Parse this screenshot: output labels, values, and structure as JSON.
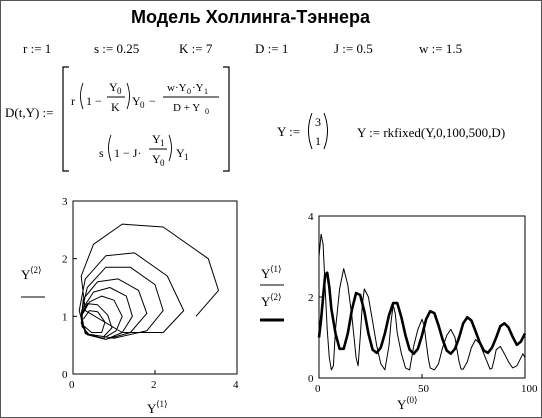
{
  "title": "Модель Холлинга-Тэннера",
  "params": [
    {
      "text": "r := 1"
    },
    {
      "text": "s := 0.25"
    },
    {
      "text": "K := 7"
    },
    {
      "text": "D := 1"
    },
    {
      "text": "J := 0.5"
    },
    {
      "text": "w := 1.5"
    }
  ],
  "equation": {
    "lhs": "D(t,Y) :=",
    "row1_r": "r",
    "row1_one": "1 −",
    "row1_Y0num": "Y",
    "row1_Y0num_sub": "0",
    "row1_K": "K",
    "row1_Y0": "Y",
    "row1_Y0_sub": "0",
    "row1_minus": "−",
    "row1_num": "w·Y",
    "row1_num_sub0": "0",
    "row1_num_mid": "·Y",
    "row1_num_sub1": "1",
    "row1_den": "D + Y",
    "row1_den_sub": "0",
    "row2_s": "s",
    "row2_one": "1 − J·",
    "row2_num": "Y",
    "row2_num_sub": "1",
    "row2_den": "Y",
    "row2_den_sub": "0",
    "row2_Y1": "Y",
    "row2_Y1_sub": "1"
  },
  "initial": {
    "lhs": "Y :=",
    "v0": "3",
    "v1": "1"
  },
  "solver": {
    "text": "Y := rkfixed(Y,0,100,500,D)"
  },
  "chart_data": [
    {
      "type": "line",
      "xlim": [
        0,
        4
      ],
      "ylim": [
        0,
        3
      ],
      "xticks": [
        "0",
        "2",
        "4"
      ],
      "yticks": [
        "0",
        "1",
        "2",
        "3"
      ],
      "xlabel": "Y",
      "xlabel_sup": "⟨1⟩",
      "ylabel": "Y",
      "ylabel_sup": "⟨2⟩",
      "series": [
        {
          "x": [
            3.0,
            3.55,
            3.3,
            2.2,
            1.2,
            0.5,
            0.2,
            0.3,
            1.2,
            2.2,
            2.7,
            2.3,
            1.5,
            0.8,
            0.3,
            0.15,
            0.3,
            1.0,
            1.8,
            2.2,
            2.0,
            1.4,
            0.8,
            0.35,
            0.2,
            0.3,
            0.8,
            1.4,
            1.8,
            1.6,
            1.1,
            0.6,
            0.25,
            0.2,
            0.35,
            0.8,
            1.2,
            1.45,
            1.3,
            0.9,
            0.5,
            0.25,
            0.2,
            0.35,
            0.75,
            1.05,
            1.2,
            1.0,
            0.7,
            0.4,
            0.22,
            0.22,
            0.4,
            0.75,
            0.95,
            0.85,
            0.6,
            0.35,
            0.22,
            0.24,
            0.45,
            0.7,
            0.78,
            0.6,
            0.4,
            0.25
          ],
          "y": [
            1.0,
            1.45,
            2.0,
            2.55,
            2.6,
            2.25,
            1.7,
            1.1,
            0.72,
            0.72,
            1.1,
            1.7,
            2.1,
            2.05,
            1.65,
            1.1,
            0.7,
            0.62,
            0.75,
            1.1,
            1.55,
            1.85,
            1.85,
            1.5,
            1.05,
            0.7,
            0.6,
            0.72,
            1.05,
            1.45,
            1.65,
            1.6,
            1.3,
            0.95,
            0.68,
            0.6,
            0.72,
            1.0,
            1.35,
            1.5,
            1.42,
            1.15,
            0.88,
            0.68,
            0.62,
            0.75,
            1.0,
            1.28,
            1.35,
            1.25,
            1.02,
            0.82,
            0.68,
            0.65,
            0.8,
            1.02,
            1.2,
            1.22,
            1.05,
            0.85,
            0.72,
            0.72,
            0.9,
            1.08,
            1.1,
            0.95
          ]
        }
      ]
    },
    {
      "type": "line",
      "xlim": [
        0,
        100
      ],
      "ylim": [
        0,
        4
      ],
      "xticks": [
        "0",
        "50",
        "100"
      ],
      "yticks": [
        "0",
        "2",
        "4"
      ],
      "xlabel": "Y",
      "xlabel_sup": "⟨0⟩",
      "legend": [
        {
          "label": "Y",
          "label_sup": "⟨1⟩",
          "style": "thin"
        },
        {
          "label": "Y",
          "label_sup": "⟨2⟩",
          "style": "thick"
        }
      ],
      "series": [
        {
          "x": [
            0,
            1,
            2,
            3,
            4,
            5,
            6,
            7,
            8,
            10,
            12,
            14,
            16,
            18,
            19,
            20,
            21,
            22,
            24,
            26,
            28,
            30,
            32,
            34,
            35,
            36,
            37,
            38,
            40,
            42,
            44,
            46,
            48,
            50,
            51,
            52,
            53,
            54,
            56,
            58,
            60,
            62,
            64,
            66,
            67,
            68,
            69,
            70,
            72,
            74,
            76,
            78,
            80,
            82,
            83,
            84,
            85,
            86,
            88,
            90,
            92,
            94,
            96,
            98,
            99,
            100
          ],
          "y": [
            3.0,
            3.55,
            3.3,
            2.2,
            1.2,
            0.5,
            0.2,
            0.3,
            1.2,
            2.2,
            2.7,
            2.3,
            1.5,
            0.5,
            0.3,
            1.0,
            1.8,
            2.2,
            2.0,
            1.4,
            0.8,
            0.35,
            0.2,
            0.8,
            1.4,
            1.8,
            1.6,
            1.1,
            0.6,
            0.25,
            0.2,
            0.8,
            1.2,
            1.45,
            1.3,
            0.9,
            0.5,
            0.25,
            0.2,
            0.35,
            0.75,
            1.05,
            1.2,
            1.0,
            0.7,
            0.4,
            0.22,
            0.22,
            0.4,
            0.75,
            0.95,
            0.85,
            0.6,
            0.35,
            0.22,
            0.24,
            0.45,
            0.7,
            0.78,
            0.6,
            0.4,
            0.25,
            0.3,
            0.5,
            0.6,
            0.5
          ]
        },
        {
          "x": [
            0,
            1,
            2,
            3,
            4,
            5,
            6,
            8,
            10,
            12,
            14,
            16,
            18,
            20,
            22,
            24,
            26,
            28,
            30,
            32,
            34,
            36,
            38,
            40,
            42,
            44,
            46,
            48,
            50,
            52,
            54,
            56,
            58,
            60,
            62,
            64,
            66,
            68,
            70,
            72,
            74,
            76,
            78,
            80,
            82,
            84,
            86,
            88,
            90,
            92,
            94,
            96,
            98,
            100
          ],
          "y": [
            1.0,
            1.45,
            2.0,
            2.55,
            2.6,
            2.25,
            1.7,
            1.1,
            0.72,
            0.72,
            1.1,
            1.7,
            2.1,
            2.05,
            1.65,
            1.1,
            0.7,
            0.62,
            0.75,
            1.1,
            1.55,
            1.85,
            1.85,
            1.5,
            1.05,
            0.7,
            0.6,
            0.72,
            1.05,
            1.45,
            1.65,
            1.6,
            1.3,
            0.95,
            0.68,
            0.6,
            0.72,
            1.0,
            1.35,
            1.5,
            1.42,
            1.15,
            0.88,
            0.68,
            0.62,
            0.75,
            1.0,
            1.28,
            1.35,
            1.25,
            1.02,
            0.82,
            0.9,
            1.1
          ]
        }
      ]
    }
  ]
}
